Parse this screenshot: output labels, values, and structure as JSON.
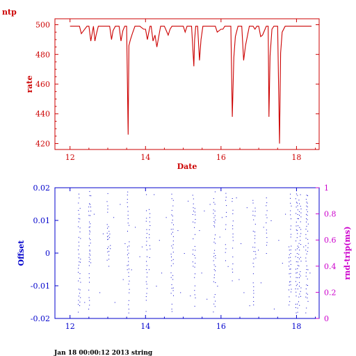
{
  "page": {
    "corner_label": "ntp",
    "footer": "Jan 18 00:00:12 2013 string"
  },
  "colors": {
    "top": "#cc0000",
    "offset": "#0000cc",
    "roundtrip": "#cc00cc",
    "footer": "#000000"
  },
  "chart_data": [
    {
      "type": "line",
      "title": "",
      "xlabel": "Date",
      "ylabel": "rate",
      "xlim": [
        11.6,
        18.6
      ],
      "ylim": [
        416,
        504
      ],
      "xticks": [
        12,
        14,
        16,
        18
      ],
      "yticks": [
        420,
        440,
        460,
        480,
        500
      ],
      "grid": false,
      "series": [
        {
          "x": [
            12.0,
            12.25,
            12.3,
            12.45,
            12.5,
            12.55,
            12.57,
            12.62,
            12.66,
            12.69,
            12.75,
            12.95,
            13.05,
            13.1,
            13.14,
            13.2,
            13.3,
            13.35,
            13.4,
            13.45,
            13.5,
            13.54,
            13.56,
            13.6,
            13.65,
            13.72,
            13.78,
            13.85,
            13.95,
            14.0,
            14.05,
            14.08,
            14.12,
            14.15,
            14.2,
            14.25,
            14.3,
            14.35,
            14.4,
            14.5,
            14.6,
            14.65,
            14.7,
            14.8,
            14.9,
            15.0,
            15.05,
            15.1,
            15.15,
            15.22,
            15.28,
            15.3,
            15.33,
            15.38,
            15.43,
            15.47,
            15.52,
            15.6,
            15.7,
            15.85,
            15.9,
            16.0,
            16.05,
            16.1,
            16.2,
            16.26,
            16.3,
            16.34,
            16.38,
            16.45,
            16.55,
            16.6,
            16.65,
            16.75,
            16.85,
            16.9,
            16.95,
            17.0,
            17.05,
            17.1,
            17.2,
            17.25,
            17.27,
            17.3,
            17.35,
            17.4,
            17.5,
            17.55,
            17.58,
            17.62,
            17.7,
            17.8,
            17.9,
            18.0,
            18.1,
            18.2,
            18.4
          ],
          "y": [
            499,
            499,
            494,
            499,
            499,
            489,
            492,
            499,
            489,
            493,
            499,
            499,
            499,
            490,
            496,
            499,
            499,
            489,
            496,
            499,
            499,
            426,
            486,
            490,
            494,
            499,
            499,
            499,
            497,
            497,
            490,
            494,
            499,
            499,
            489,
            493,
            485,
            492,
            499,
            499,
            493,
            497,
            499,
            499,
            499,
            499,
            495,
            499,
            499,
            499,
            472,
            490,
            499,
            499,
            476,
            490,
            499,
            499,
            499,
            499,
            495,
            497,
            497,
            499,
            499,
            499,
            438,
            478,
            492,
            499,
            499,
            476,
            486,
            499,
            499,
            497,
            499,
            499,
            492,
            493,
            499,
            499,
            438,
            479,
            497,
            499,
            499,
            420,
            481,
            495,
            499,
            499,
            499,
            499,
            499,
            499,
            499
          ]
        }
      ]
    },
    {
      "type": "scatter",
      "title": "",
      "xlabel": "",
      "ylabel": "Offset",
      "y2label": "rnd-trip(ms)",
      "xlim": [
        11.6,
        18.6
      ],
      "ylim": [
        -0.02,
        0.02
      ],
      "y2lim": [
        0,
        1
      ],
      "xticks": [
        12,
        14,
        16,
        18
      ],
      "yticks": [
        -0.02,
        -0.01,
        0,
        0.01,
        0.02
      ],
      "y2ticks": [
        0,
        0.2,
        0.4,
        0.6,
        0.8,
        1
      ],
      "grid": false,
      "x_tick_labels": [
        "12",
        "14",
        "16",
        "18"
      ],
      "y_tick_labels": [
        "-0.02",
        "-0.01",
        "0",
        "0.01",
        "0.02"
      ],
      "y2_tick_labels": [
        "0",
        "0.2",
        "0.4",
        "0.6",
        "0.8",
        "1"
      ],
      "offset_columns": [
        {
          "x": 12.22,
          "y0": -0.018,
          "y1": 0.019
        },
        {
          "x": 12.26,
          "y0": -0.016,
          "y1": 0.016
        },
        {
          "x": 12.5,
          "y0": -0.017,
          "y1": 0.019
        },
        {
          "x": 12.53,
          "y0": -0.004,
          "y1": 0.018
        },
        {
          "x": 12.98,
          "y0": -0.002,
          "y1": 0.019
        },
        {
          "x": 13.02,
          "y0": -0.004,
          "y1": 0.008
        },
        {
          "x": 13.05,
          "y0": 0.0,
          "y1": 0.006
        },
        {
          "x": 13.52,
          "y0": -0.005,
          "y1": 0.019
        },
        {
          "x": 13.55,
          "y0": -0.018,
          "y1": 0.012
        },
        {
          "x": 14.02,
          "y0": -0.018,
          "y1": 0.019
        },
        {
          "x": 14.1,
          "y0": -0.006,
          "y1": 0.015
        },
        {
          "x": 14.68,
          "y0": -0.018,
          "y1": 0.019
        },
        {
          "x": 14.72,
          "y0": -0.014,
          "y1": 0.017
        },
        {
          "x": 15.25,
          "y0": -0.005,
          "y1": 0.019
        },
        {
          "x": 15.3,
          "y0": -0.016,
          "y1": 0.014
        },
        {
          "x": 15.8,
          "y0": -0.018,
          "y1": 0.019
        },
        {
          "x": 15.83,
          "y0": -0.016,
          "y1": 0.019
        },
        {
          "x": 16.12,
          "y0": -0.002,
          "y1": 0.019
        },
        {
          "x": 16.3,
          "y0": -0.013,
          "y1": 0.019
        },
        {
          "x": 16.85,
          "y0": -0.016,
          "y1": 0.019
        },
        {
          "x": 16.9,
          "y0": -0.004,
          "y1": 0.014
        },
        {
          "x": 17.2,
          "y0": 0.0,
          "y1": 0.019
        },
        {
          "x": 17.8,
          "y0": -0.017,
          "y1": 0.004
        },
        {
          "x": 17.84,
          "y0": -0.012,
          "y1": 0.019
        },
        {
          "x": 17.98,
          "y0": -0.018,
          "y1": 0.019
        },
        {
          "x": 18.02,
          "y0": -0.018,
          "y1": 0.019
        },
        {
          "x": 18.06,
          "y0": -0.016,
          "y1": 0.018
        },
        {
          "x": 18.1,
          "y0": -0.013,
          "y1": 0.019
        },
        {
          "x": 18.25,
          "y0": -0.018,
          "y1": 0.019
        },
        {
          "x": 18.29,
          "y0": -0.016,
          "y1": 0.019
        }
      ],
      "scattered_points": [
        [
          12.38,
          -0.015
        ],
        [
          12.63,
          0.012
        ],
        [
          12.78,
          -0.012
        ],
        [
          12.87,
          0.006
        ],
        [
          13.15,
          0.011
        ],
        [
          13.18,
          -0.015
        ],
        [
          13.32,
          0.015
        ],
        [
          13.4,
          -0.008
        ],
        [
          13.45,
          0.003
        ],
        [
          13.62,
          -0.005
        ],
        [
          13.72,
          0.008
        ],
        [
          13.84,
          -0.001
        ],
        [
          13.9,
          0.002
        ],
        [
          14.22,
          0.018
        ],
        [
          14.28,
          -0.01
        ],
        [
          14.36,
          0.004
        ],
        [
          14.42,
          -0.006
        ],
        [
          14.54,
          0.011
        ],
        [
          14.85,
          0.007
        ],
        [
          14.92,
          -0.012
        ],
        [
          15.02,
          0.0
        ],
        [
          15.12,
          0.016
        ],
        [
          15.18,
          -0.013
        ],
        [
          15.42,
          0.007
        ],
        [
          15.48,
          -0.006
        ],
        [
          15.55,
          0.013
        ],
        [
          15.62,
          -0.014
        ],
        [
          15.7,
          0.015
        ],
        [
          15.9,
          -0.01
        ],
        [
          15.96,
          0.005
        ],
        [
          16.02,
          0.011
        ],
        [
          16.18,
          -0.004
        ],
        [
          16.4,
          0.017
        ],
        [
          16.47,
          -0.008
        ],
        [
          16.52,
          0.003
        ],
        [
          16.6,
          -0.012
        ],
        [
          16.68,
          0.014
        ],
        [
          16.75,
          -0.016
        ],
        [
          16.98,
          0.001
        ],
        [
          17.05,
          -0.009
        ],
        [
          17.12,
          0.008
        ],
        [
          17.32,
          0.01
        ],
        [
          17.4,
          -0.017
        ],
        [
          17.52,
          0.004
        ],
        [
          17.62,
          -0.003
        ],
        [
          17.7,
          0.012
        ],
        [
          18.18,
          0.002
        ],
        [
          18.35,
          -0.006
        ]
      ]
    }
  ]
}
